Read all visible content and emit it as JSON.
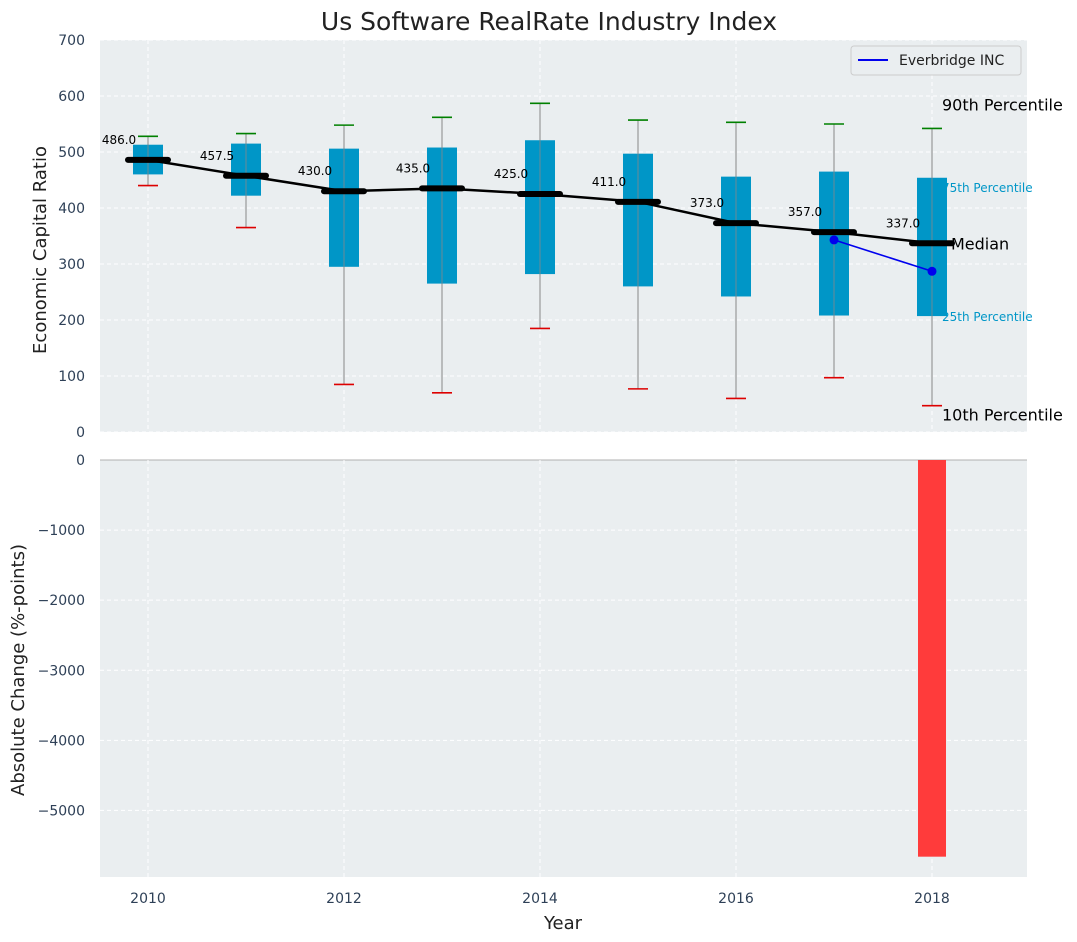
{
  "colors": {
    "background": "#eaeef0",
    "grid": "#ffffff",
    "box": "#0096c7",
    "whisker": "#888888",
    "p90_cap": "#008000",
    "p10_cap": "#dd0000",
    "median": "#000000",
    "company": "#0000ee",
    "change_bar": "#ff3b3b"
  },
  "chart_data": [
    {
      "type": "box",
      "title": "Us Software RealRate Industry Index",
      "ylabel": "Economic Capital Ratio",
      "ylim": [
        0,
        700
      ],
      "yticks": [
        0,
        100,
        200,
        300,
        400,
        500,
        600,
        700
      ],
      "grid": true,
      "legend_position": "top-right",
      "x": [
        2010,
        2011,
        2012,
        2013,
        2014,
        2015,
        2016,
        2017,
        2018
      ],
      "p10": [
        440,
        365,
        85,
        70,
        185,
        77,
        60,
        97,
        47
      ],
      "p25": [
        460,
        422,
        295,
        265,
        282,
        260,
        242,
        208,
        207
      ],
      "median": [
        486.0,
        457.5,
        430.0,
        435.0,
        425.0,
        411.0,
        373.0,
        357.0,
        337.0
      ],
      "median_labels": [
        "486.0",
        "457.5",
        "430.0",
        "435.0",
        "425.0",
        "411.0",
        "373.0",
        "357.0",
        "337.0"
      ],
      "p75": [
        513,
        515,
        506,
        508,
        521,
        497,
        456,
        465,
        454
      ],
      "p90": [
        528,
        533,
        548,
        562,
        587,
        557,
        553,
        550,
        542
      ],
      "series": [
        {
          "name": "Everbridge INC",
          "x": [
            2017,
            2018
          ],
          "values": [
            343,
            287
          ]
        }
      ],
      "annotations": {
        "p90": "90th Percentile",
        "p75": "75th Percentile",
        "median": "Median",
        "p25": "25th Percentile",
        "p10": "10th Percentile"
      }
    },
    {
      "type": "bar",
      "xlabel": "Year",
      "ylabel": "Absolute Change (%-points)",
      "ylim": [
        -5950,
        0
      ],
      "yticks": [
        0,
        -1000,
        -2000,
        -3000,
        -4000,
        -5000
      ],
      "ytick_labels": [
        "0",
        "−1000",
        "−2000",
        "−3000",
        "−4000",
        "−5000"
      ],
      "xlim": [
        2009.5,
        2019
      ],
      "xticks": [
        2010,
        2012,
        2014,
        2016,
        2018
      ],
      "grid": true,
      "categories": [
        2018
      ],
      "values": [
        -5660
      ]
    }
  ]
}
